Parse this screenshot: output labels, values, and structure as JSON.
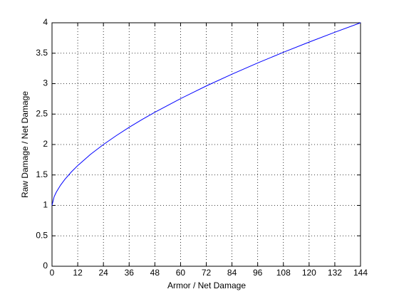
{
  "chart_data": {
    "type": "line",
    "xlabel": "Armor / Net Damage",
    "ylabel": "Raw Damage / Net Damage",
    "x": [
      0,
      1,
      2,
      4,
      6,
      9,
      12,
      18,
      24,
      30,
      36,
      42,
      48,
      60,
      72,
      84,
      96,
      108,
      120,
      132,
      144
    ],
    "series": [
      {
        "color": "#0000ff",
        "values": [
          1,
          1.143,
          1.218,
          1.333,
          1.428,
          1.548,
          1.654,
          1.839,
          2.0,
          2.146,
          2.283,
          2.41,
          2.53,
          2.754,
          2.962,
          3.156,
          3.34,
          3.515,
          3.683,
          3.844,
          4
        ]
      }
    ],
    "xlim": [
      0,
      144
    ],
    "xticks": [
      0,
      12,
      24,
      36,
      48,
      60,
      72,
      84,
      96,
      108,
      120,
      132,
      144
    ],
    "ylim": [
      0,
      4
    ],
    "yticks": [
      0,
      0.5,
      1,
      1.5,
      2,
      2.5,
      3,
      3.5,
      4
    ],
    "grid": true
  }
}
